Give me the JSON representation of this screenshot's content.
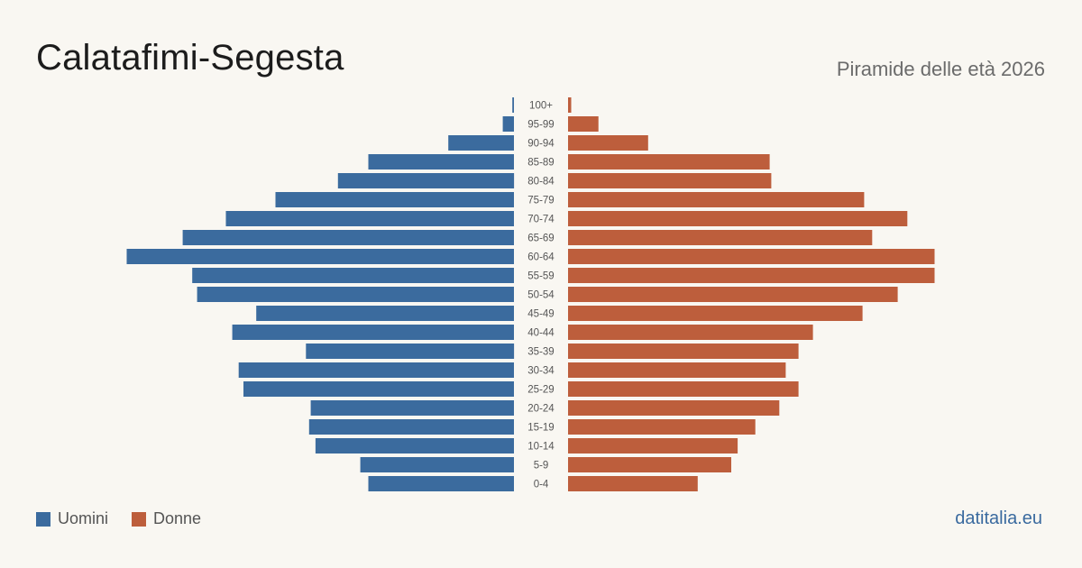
{
  "header": {
    "title": "Calatafimi-Segesta",
    "subtitle": "Piramide delle età 2026"
  },
  "legend": {
    "men_label": "Uomini",
    "women_label": "Donne"
  },
  "brand": "datitalia.eu",
  "colors": {
    "men": "#3b6b9e",
    "women": "#bd5e3c"
  },
  "chart_data": {
    "type": "bar",
    "orientation": "horizontal-population-pyramid",
    "categories": [
      "100+",
      "95-99",
      "90-94",
      "85-89",
      "80-84",
      "75-79",
      "70-74",
      "65-69",
      "60-64",
      "55-59",
      "50-54",
      "45-49",
      "40-44",
      "35-39",
      "30-34",
      "25-29",
      "20-24",
      "15-19",
      "10-14",
      "5-9",
      "0-4"
    ],
    "series": [
      {
        "name": "Uomini",
        "values": [
          1,
          7,
          41,
          91,
          110,
          149,
          180,
          207,
          242,
          201,
          198,
          161,
          176,
          130,
          172,
          169,
          127,
          128,
          124,
          96,
          91
        ]
      },
      {
        "name": "Donne",
        "values": [
          2,
          19,
          50,
          126,
          127,
          185,
          212,
          190,
          229,
          229,
          206,
          184,
          153,
          144,
          136,
          144,
          132,
          117,
          106,
          102,
          81
        ]
      }
    ],
    "legend_position": "bottom-left",
    "grid": false
  }
}
